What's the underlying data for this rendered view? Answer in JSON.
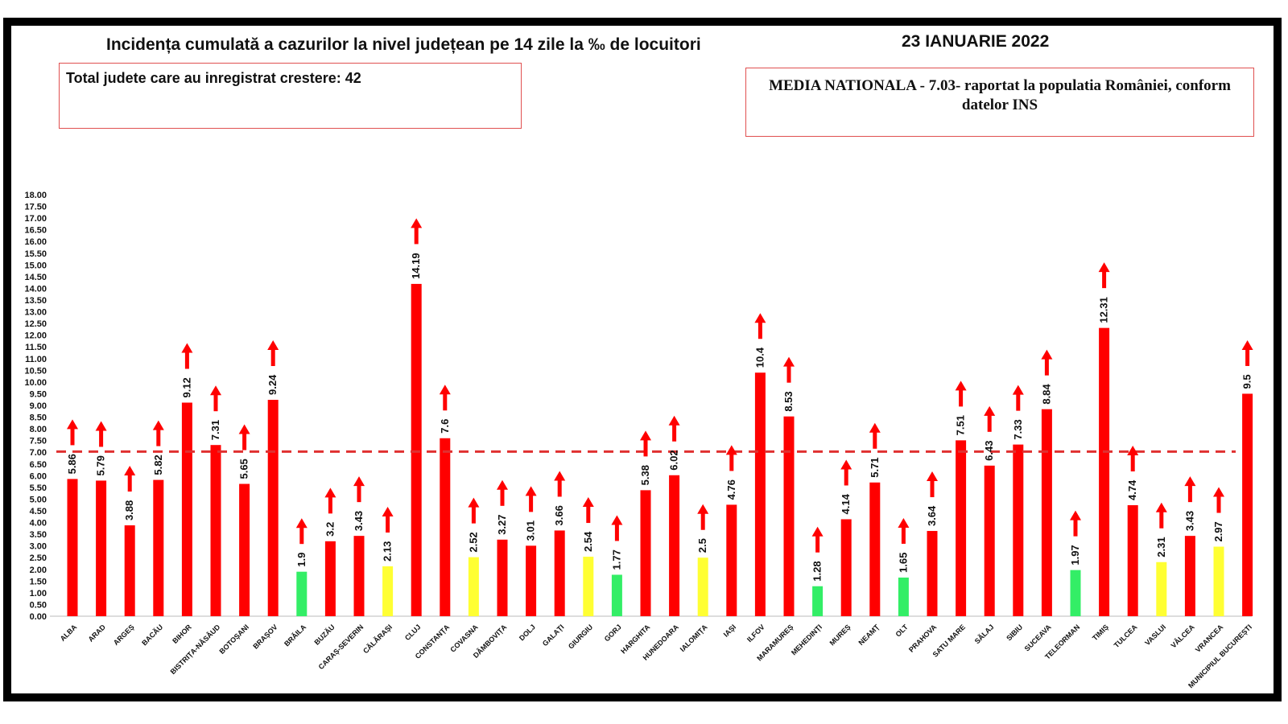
{
  "header": {
    "title": "Incidența cumulată a cazurilor la nivel județean pe 14 zile la ‰ de locuitori",
    "date": "23 IANUARIE 2022"
  },
  "info": {
    "total_increase": "Total judete care au inregistrat crestere: 42",
    "national_average": "MEDIA NATIONALA - 7.03-  raportat la populatia României, conform datelor INS"
  },
  "colors": {
    "red": "#ff0000",
    "yellow": "#ffff33",
    "green": "#33ee66",
    "arrow": "#ff0000",
    "average_line": "#e03030"
  },
  "chart_data": {
    "type": "bar",
    "title": "Incidența cumulată a cazurilor la nivel județean pe 14 zile la ‰ de locuitori",
    "xlabel": "",
    "ylabel": "",
    "ylim": [
      0,
      18
    ],
    "yticks": [
      "0.00",
      "0.50",
      "1.00",
      "1.50",
      "2.00",
      "2.50",
      "3.00",
      "3.50",
      "4.00",
      "4.50",
      "5.00",
      "5.50",
      "6.00",
      "6.50",
      "7.00",
      "7.50",
      "8.00",
      "8.50",
      "9.00",
      "9.50",
      "10.00",
      "10.50",
      "11.00",
      "11.50",
      "12.00",
      "12.50",
      "13.00",
      "13.50",
      "14.00",
      "14.50",
      "15.00",
      "15.50",
      "16.00",
      "16.50",
      "17.00",
      "17.50",
      "18.00"
    ],
    "reference_line": 7.03,
    "grid": false,
    "legend": "none",
    "categories": [
      "ALBA",
      "ARAD",
      "ARGEȘ",
      "BACĂU",
      "BIHOR",
      "BISTRIȚA-NĂSĂUD",
      "BOTOȘANI",
      "BRAȘOV",
      "BRĂILA",
      "BUZĂU",
      "CARAȘ-SEVERIN",
      "CĂLĂRAȘI",
      "CLUJ",
      "CONSTANȚA",
      "COVASNA",
      "DÂMBOVIȚA",
      "DOLJ",
      "GALAȚI",
      "GIURGIU",
      "GORJ",
      "HARGHITA",
      "HUNEDOARA",
      "IALOMIȚA",
      "IAȘI",
      "ILFOV",
      "MARAMUREȘ",
      "MEHEDINȚI",
      "MUREȘ",
      "NEAMȚ",
      "OLT",
      "PRAHOVA",
      "SATU MARE",
      "SĂLAJ",
      "SIBIU",
      "SUCEAVA",
      "TELEORMAN",
      "TIMIȘ",
      "TULCEA",
      "VASLUI",
      "VÂLCEA",
      "VRANCEA",
      "MUNICIPIUL BUCUREȘTI"
    ],
    "values": [
      5.86,
      5.79,
      3.88,
      5.82,
      9.12,
      7.31,
      5.65,
      9.24,
      1.9,
      3.2,
      3.43,
      2.13,
      14.19,
      7.6,
      2.52,
      3.27,
      3.01,
      3.66,
      2.54,
      1.77,
      5.38,
      6.02,
      2.5,
      4.76,
      10.4,
      8.53,
      1.28,
      4.14,
      5.71,
      1.65,
      3.64,
      7.51,
      6.43,
      7.33,
      8.84,
      1.97,
      12.31,
      4.74,
      2.31,
      3.43,
      2.97,
      9.5
    ],
    "value_labels": [
      "5.86",
      "5.79",
      "3.88",
      "5.82",
      "9.12",
      "7.31",
      "5.65",
      "9.24",
      "1.9",
      "3.2",
      "3.43",
      "2.13",
      "14.19",
      "7.6",
      "2.52",
      "3.27",
      "3.01",
      "3.66",
      "2.54",
      "1.77",
      "5.38",
      "6.02",
      "2.5",
      "4.76",
      "10.4",
      "8.53",
      "1.28",
      "4.14",
      "5.71",
      "1.65",
      "3.64",
      "7.51",
      "6.43",
      "7.33",
      "8.84",
      "1.97",
      "12.31",
      "4.74",
      "2.31",
      "3.43",
      "2.97",
      "9.5"
    ],
    "bar_colors": [
      "red",
      "red",
      "red",
      "red",
      "red",
      "red",
      "red",
      "red",
      "green",
      "red",
      "red",
      "yellow",
      "red",
      "red",
      "yellow",
      "red",
      "red",
      "red",
      "yellow",
      "green",
      "red",
      "red",
      "yellow",
      "red",
      "red",
      "red",
      "green",
      "red",
      "red",
      "green",
      "red",
      "red",
      "red",
      "red",
      "red",
      "green",
      "red",
      "red",
      "yellow",
      "red",
      "yellow",
      "red"
    ],
    "trend": [
      "up",
      "up",
      "up",
      "up",
      "up",
      "up",
      "up",
      "up",
      "up",
      "up",
      "up",
      "up",
      "up",
      "up",
      "up",
      "up",
      "up",
      "up",
      "up",
      "up",
      "up",
      "up",
      "up",
      "up",
      "up",
      "up",
      "up",
      "up",
      "up",
      "up",
      "up",
      "up",
      "up",
      "up",
      "up",
      "up",
      "up",
      "up",
      "up",
      "up",
      "up",
      "up"
    ]
  }
}
